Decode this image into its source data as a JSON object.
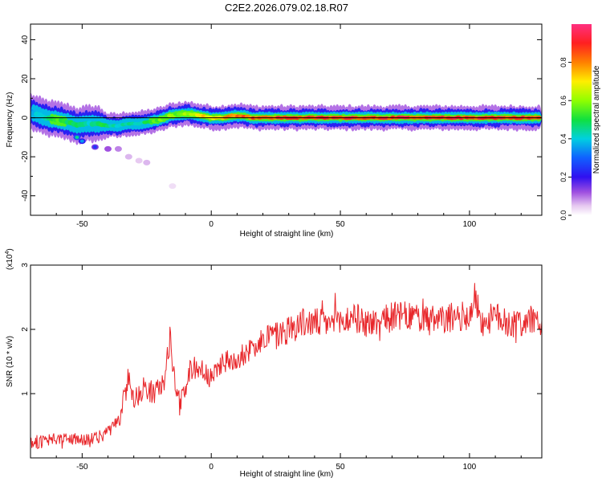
{
  "title": "C2E2.2026.079.02.18.R07",
  "chart_data": [
    {
      "type": "heatmap",
      "name": "spectrogram",
      "xlabel": "Height of straight line (km)",
      "ylabel": "Frequency (Hz)",
      "xlim": [
        -70,
        128
      ],
      "ylim": [
        -50,
        48
      ],
      "xticks": [
        -50,
        0,
        50,
        100
      ],
      "yticks": [
        -40,
        -20,
        0,
        20,
        40
      ],
      "tick_labels_x": [
        "-50",
        "0",
        "50",
        "100"
      ],
      "tick_labels_y": [
        "-40",
        "-20",
        "0",
        "20",
        "40"
      ],
      "reference_line": {
        "y": 0
      },
      "ridge": [
        {
          "x": -68,
          "y": 2,
          "amp": 0.4,
          "spread": 3
        },
        {
          "x": -64,
          "y": 0,
          "amp": 0.5,
          "spread": 3
        },
        {
          "x": -60,
          "y": -1,
          "amp": 0.6,
          "spread": 3
        },
        {
          "x": -56,
          "y": -2,
          "amp": 0.55,
          "spread": 3
        },
        {
          "x": -52,
          "y": -4,
          "amp": 0.5,
          "spread": 3
        },
        {
          "x": -48,
          "y": -3,
          "amp": 0.45,
          "spread": 3
        },
        {
          "x": -44,
          "y": -3,
          "amp": 0.55,
          "spread": 3
        },
        {
          "x": -40,
          "y": -4,
          "amp": 0.5,
          "spread": 2
        },
        {
          "x": -36,
          "y": -4,
          "amp": 0.45,
          "spread": 2
        },
        {
          "x": -32,
          "y": -3,
          "amp": 0.5,
          "spread": 2
        },
        {
          "x": -28,
          "y": -3,
          "amp": 0.45,
          "spread": 2
        },
        {
          "x": -24,
          "y": -2,
          "amp": 0.55,
          "spread": 2
        },
        {
          "x": -20,
          "y": -1,
          "amp": 0.6,
          "spread": 2
        },
        {
          "x": -16,
          "y": 1,
          "amp": 0.65,
          "spread": 2
        },
        {
          "x": -12,
          "y": 2,
          "amp": 0.6,
          "spread": 2
        },
        {
          "x": -8,
          "y": 2,
          "amp": 0.7,
          "spread": 2
        },
        {
          "x": -4,
          "y": 1,
          "amp": 0.75,
          "spread": 2
        },
        {
          "x": 0,
          "y": 0,
          "amp": 0.8,
          "spread": 2
        },
        {
          "x": 4,
          "y": 0,
          "amp": 0.85,
          "spread": 2
        },
        {
          "x": 8,
          "y": 1,
          "amp": 0.85,
          "spread": 2
        },
        {
          "x": 12,
          "y": 1,
          "amp": 0.9,
          "spread": 2
        },
        {
          "x": 16,
          "y": 0,
          "amp": 0.9,
          "spread": 2
        },
        {
          "x": 20,
          "y": 0,
          "amp": 0.9,
          "spread": 2
        },
        {
          "x": 30,
          "y": 0,
          "amp": 0.95,
          "spread": 2
        },
        {
          "x": 40,
          "y": 0,
          "amp": 0.95,
          "spread": 2
        },
        {
          "x": 50,
          "y": 0,
          "amp": 0.95,
          "spread": 2
        },
        {
          "x": 60,
          "y": 0,
          "amp": 0.95,
          "spread": 2
        },
        {
          "x": 70,
          "y": 0,
          "amp": 0.95,
          "spread": 2
        },
        {
          "x": 80,
          "y": 0,
          "amp": 0.95,
          "spread": 2
        },
        {
          "x": 90,
          "y": 0,
          "amp": 0.95,
          "spread": 2
        },
        {
          "x": 100,
          "y": 0,
          "amp": 0.95,
          "spread": 2
        },
        {
          "x": 110,
          "y": 0,
          "amp": 0.95,
          "spread": 2
        },
        {
          "x": 120,
          "y": 0,
          "amp": 0.95,
          "spread": 2
        },
        {
          "x": 127,
          "y": 0,
          "amp": 0.9,
          "spread": 2
        }
      ],
      "blobs": [
        {
          "x": -52,
          "y": -10,
          "amp": 0.45
        },
        {
          "x": -50,
          "y": -12,
          "amp": 0.35
        },
        {
          "x": -45,
          "y": -15,
          "amp": 0.25
        },
        {
          "x": -40,
          "y": -16,
          "amp": 0.2
        },
        {
          "x": -36,
          "y": -16,
          "amp": 0.15
        },
        {
          "x": -32,
          "y": -20,
          "amp": 0.1
        },
        {
          "x": -28,
          "y": -22,
          "amp": 0.08
        },
        {
          "x": -25,
          "y": -23,
          "amp": 0.1
        },
        {
          "x": -15,
          "y": -35,
          "amp": 0.05
        }
      ]
    },
    {
      "type": "colorbar",
      "name": "amplitude-colorbar",
      "label": "Normalized spectral amplitude",
      "range": [
        0,
        1
      ],
      "ticks": [
        0,
        0.2,
        0.4,
        0.6,
        0.8
      ],
      "tick_labels": [
        "0.0",
        "0.2",
        "0.4",
        "0.6",
        "0.8"
      ]
    },
    {
      "type": "line",
      "name": "snr",
      "xlabel": "Height of straight line (km)",
      "ylabel": "SNR (10 * v/v)",
      "y_multiplier": "(x10",
      "y_multiplier_exp": "4",
      "y_multiplier_close": ")",
      "xlim": [
        -70,
        128
      ],
      "ylim": [
        0,
        3
      ],
      "xticks": [
        -50,
        0,
        50,
        100
      ],
      "yticks": [
        1,
        2,
        3
      ],
      "tick_labels_x": [
        "-50",
        "0",
        "50",
        "100"
      ],
      "tick_labels_y": [
        "1",
        "2",
        "3"
      ],
      "color": "#e8262a",
      "x": [
        -70,
        -65,
        -60,
        -55,
        -50,
        -45,
        -40,
        -35,
        -32,
        -30,
        -26,
        -22,
        -18,
        -16,
        -14,
        -12,
        -8,
        -4,
        0,
        4,
        8,
        12,
        16,
        20,
        25,
        30,
        35,
        40,
        45,
        50,
        55,
        60,
        65,
        70,
        75,
        80,
        85,
        90,
        95,
        100,
        102,
        105,
        110,
        115,
        120,
        125,
        128
      ],
      "y": [
        0.25,
        0.25,
        0.28,
        0.3,
        0.3,
        0.3,
        0.4,
        0.6,
        1.3,
        0.9,
        1.1,
        1.0,
        1.2,
        1.9,
        1.1,
        0.8,
        1.4,
        1.4,
        1.2,
        1.5,
        1.5,
        1.6,
        1.7,
        1.9,
        1.9,
        2.0,
        2.1,
        2.1,
        2.1,
        2.1,
        2.2,
        2.1,
        2.1,
        2.2,
        2.2,
        2.2,
        2.1,
        2.15,
        2.2,
        2.2,
        2.5,
        2.1,
        2.2,
        2.1,
        2.1,
        2.15,
        2.1
      ],
      "noise": 0.18
    }
  ]
}
